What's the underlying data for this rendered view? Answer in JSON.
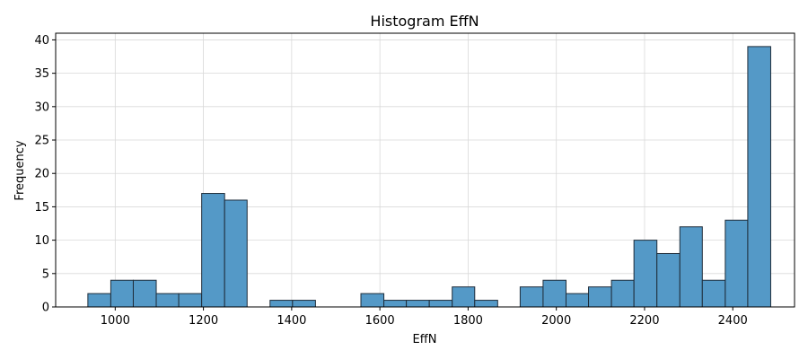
{
  "chart_data": {
    "type": "bar",
    "subtype": "histogram",
    "title": "Histogram EffN",
    "xlabel": "EffN",
    "ylabel": "Frequency",
    "xlim": [
      865,
      2540
    ],
    "ylim": [
      0,
      41
    ],
    "xticks": [
      1000,
      1200,
      1400,
      1600,
      1800,
      2000,
      2200,
      2400
    ],
    "yticks": [
      0,
      5,
      10,
      15,
      20,
      25,
      30,
      35,
      40
    ],
    "grid": true,
    "bar_color": "#5499c7",
    "edge_color": "#1f2d3a",
    "bins": [
      {
        "start": 938,
        "end": 990,
        "count": 2
      },
      {
        "start": 990,
        "end": 1041,
        "count": 4
      },
      {
        "start": 1041,
        "end": 1093,
        "count": 4
      },
      {
        "start": 1093,
        "end": 1144,
        "count": 2
      },
      {
        "start": 1144,
        "end": 1196,
        "count": 2
      },
      {
        "start": 1196,
        "end": 1248,
        "count": 17
      },
      {
        "start": 1248,
        "end": 1299,
        "count": 16
      },
      {
        "start": 1299,
        "end": 1351,
        "count": 0
      },
      {
        "start": 1351,
        "end": 1402,
        "count": 1
      },
      {
        "start": 1402,
        "end": 1454,
        "count": 1
      },
      {
        "start": 1454,
        "end": 1506,
        "count": 0
      },
      {
        "start": 1506,
        "end": 1557,
        "count": 0
      },
      {
        "start": 1557,
        "end": 1609,
        "count": 2
      },
      {
        "start": 1609,
        "end": 1660,
        "count": 1
      },
      {
        "start": 1660,
        "end": 1712,
        "count": 1
      },
      {
        "start": 1712,
        "end": 1764,
        "count": 1
      },
      {
        "start": 1764,
        "end": 1815,
        "count": 3
      },
      {
        "start": 1815,
        "end": 1867,
        "count": 1
      },
      {
        "start": 1867,
        "end": 1918,
        "count": 0
      },
      {
        "start": 1918,
        "end": 1970,
        "count": 3
      },
      {
        "start": 1970,
        "end": 2022,
        "count": 4
      },
      {
        "start": 2022,
        "end": 2073,
        "count": 2
      },
      {
        "start": 2073,
        "end": 2125,
        "count": 3
      },
      {
        "start": 2125,
        "end": 2176,
        "count": 4
      },
      {
        "start": 2176,
        "end": 2228,
        "count": 10
      },
      {
        "start": 2228,
        "end": 2280,
        "count": 8
      },
      {
        "start": 2280,
        "end": 2331,
        "count": 12
      },
      {
        "start": 2331,
        "end": 2383,
        "count": 4
      },
      {
        "start": 2383,
        "end": 2434,
        "count": 13
      },
      {
        "start": 2434,
        "end": 2486,
        "count": 39
      }
    ]
  }
}
